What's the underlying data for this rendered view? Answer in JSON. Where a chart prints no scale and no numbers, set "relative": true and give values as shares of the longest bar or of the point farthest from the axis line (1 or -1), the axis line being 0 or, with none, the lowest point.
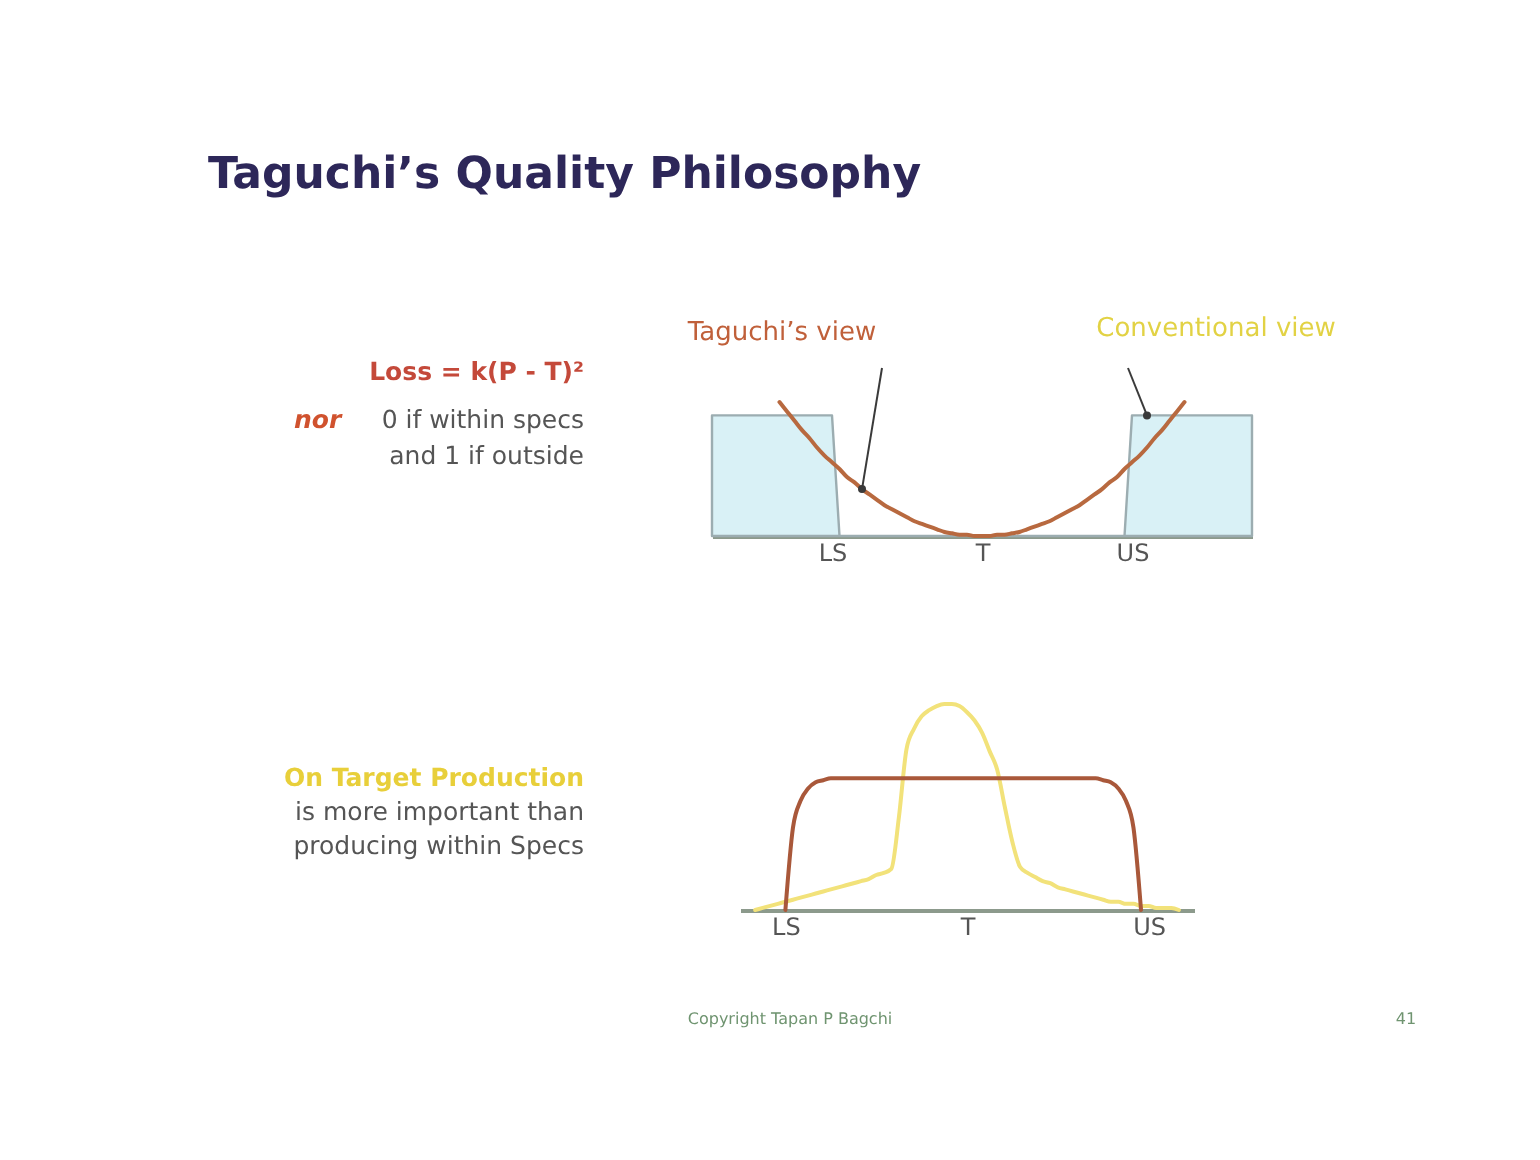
{
  "chart_data": [
    {
      "type": "line",
      "title": "Taguchi’s Quality Philosophy",
      "relative": true,
      "categories": [
        null,
        null,
        null,
        null,
        null,
        null,
        null,
        null,
        null,
        null,
        null,
        null,
        null,
        null,
        null,
        null,
        "LS",
        null,
        null,
        null,
        null,
        null,
        null,
        null,
        null,
        null,
        null,
        null,
        null,
        null,
        null,
        null,
        null,
        null,
        null,
        null,
        "T",
        null,
        null,
        null,
        null,
        null,
        null,
        null,
        null,
        null,
        null,
        null,
        null,
        null,
        null,
        null,
        null,
        null,
        null,
        null,
        "US",
        null,
        null,
        null,
        null,
        null,
        null,
        null,
        null,
        null,
        null,
        null,
        null,
        null,
        null,
        null,
        null
      ],
      "series": [
        {
          "name": "Conventional view",
          "type": "area",
          "color": "#d9f1f6",
          "values": [
            0.9,
            0.9,
            0.9,
            0.9,
            0.9,
            0.9,
            0.9,
            0.9,
            0.9,
            0.9,
            0.9,
            0.9,
            0.9,
            0.9,
            0.9,
            0.9,
            0.9,
            0,
            0,
            0,
            0,
            0,
            0,
            0,
            0,
            0,
            0,
            0,
            0,
            0,
            0,
            0,
            0,
            0,
            0,
            0,
            0,
            0,
            0,
            0,
            0,
            0,
            0,
            0,
            0,
            0,
            0,
            0,
            0,
            0,
            0,
            0,
            0,
            0,
            0,
            0,
            0.9,
            0.9,
            0.9,
            0.9,
            0.9,
            0.9,
            0.9,
            0.9,
            0.9,
            0.9,
            0.9,
            0.9,
            0.9,
            0.9,
            0.9,
            0.9,
            0.9
          ]
        },
        {
          "name": "Taguchi’s view",
          "type": "line",
          "color": "#b8693f",
          "values": [
            null,
            null,
            null,
            null,
            null,
            null,
            null,
            null,
            null,
            1,
            0.93,
            0.86,
            0.79,
            0.73,
            0.66,
            0.6,
            0.55,
            0.5,
            0.44,
            0.4,
            0.35,
            0.31,
            0.27,
            0.23,
            0.2,
            0.17,
            0.14,
            0.11,
            0.09,
            0.07,
            0.05,
            0.03,
            0.02,
            0.01,
            0.01,
            0,
            0,
            0,
            0.01,
            0.01,
            0.02,
            0.03,
            0.05,
            0.07,
            0.09,
            0.11,
            0.14,
            0.17,
            0.2,
            0.23,
            0.27,
            0.31,
            0.35,
            0.4,
            0.44,
            0.5,
            0.55,
            0.6,
            0.66,
            0.73,
            0.79,
            0.86,
            0.93,
            1,
            null,
            null,
            null,
            null,
            null,
            null,
            null,
            null,
            null
          ]
        }
      ],
      "annotations": [
        "Loss = k(P - T)²",
        "nor",
        "0  if within specs",
        "and 1  if outside"
      ]
    },
    {
      "type": "line",
      "relative": true,
      "categories": [
        null,
        null,
        null,
        null,
        null,
        null,
        "LS",
        null,
        null,
        null,
        null,
        null,
        null,
        null,
        null,
        null,
        null,
        null,
        null,
        null,
        null,
        null,
        null,
        null,
        null,
        null,
        null,
        null,
        null,
        null,
        "T",
        null,
        null,
        null,
        null,
        null,
        null,
        null,
        null,
        null,
        null,
        null,
        null,
        null,
        null,
        null,
        null,
        null,
        null,
        null,
        null,
        null,
        null,
        null,
        "US",
        null,
        null,
        null,
        null,
        null,
        null
      ],
      "series": [
        {
          "color": "#f2e27a",
          "values": [
            null,
            null,
            0,
            0.01,
            0.02,
            0.03,
            0.04,
            0.05,
            0.06,
            0.07,
            0.08,
            0.09,
            0.1,
            0.11,
            0.12,
            0.13,
            0.14,
            0.15,
            0.17,
            0.18,
            0.2,
            0.45,
            0.78,
            0.88,
            0.94,
            0.97,
            0.99,
            1,
            1,
            0.99,
            0.96,
            0.92,
            0.86,
            0.77,
            0.68,
            0.5,
            0.33,
            0.21,
            0.18,
            0.16,
            0.14,
            0.13,
            0.11,
            0.1,
            0.09,
            0.08,
            0.07,
            0.06,
            0.05,
            0.04,
            0.04,
            0.03,
            0.03,
            0.02,
            0.02,
            0.01,
            0.01,
            0.01,
            0,
            null,
            null
          ]
        },
        {
          "color": "#a9583a",
          "values": [
            null,
            null,
            null,
            null,
            null,
            null,
            0,
            0.4,
            0.53,
            0.59,
            0.62,
            0.63,
            0.64,
            0.64,
            0.64,
            0.64,
            0.64,
            0.64,
            0.64,
            0.64,
            0.64,
            0.64,
            0.64,
            0.64,
            0.64,
            0.64,
            0.64,
            0.64,
            0.64,
            0.64,
            0.64,
            0.64,
            0.64,
            0.64,
            0.64,
            0.64,
            0.64,
            0.64,
            0.64,
            0.64,
            0.64,
            0.64,
            0.64,
            0.64,
            0.64,
            0.64,
            0.64,
            0.64,
            0.63,
            0.62,
            0.59,
            0.53,
            0.4,
            0,
            null,
            null,
            null,
            null,
            null,
            null,
            null
          ]
        }
      ],
      "annotations": [
        "On Target Production",
        "is more important than",
        "producing within Specs",
        "Copyright Tapan P Bagchi",
        "41"
      ]
    }
  ]
}
